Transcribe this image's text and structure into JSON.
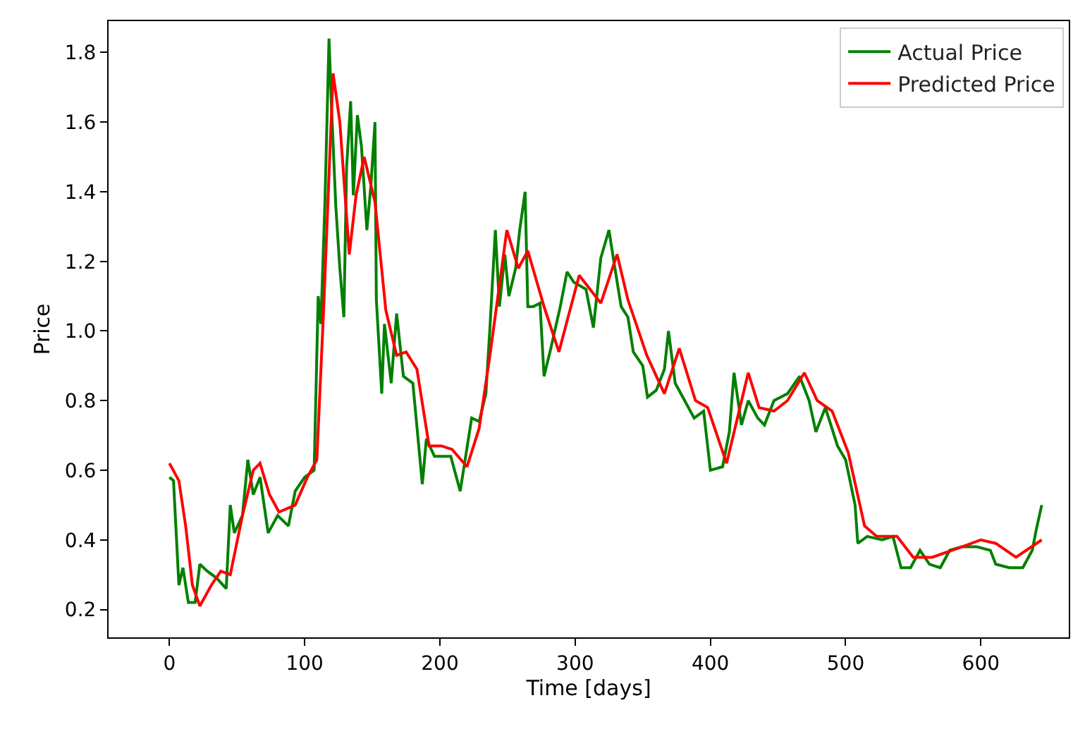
{
  "chart_data": {
    "type": "line",
    "xlabel": "Time [days]",
    "ylabel": "Price",
    "xlim": [
      -45,
      665
    ],
    "ylim": [
      0.12,
      1.89
    ],
    "xticks": [
      0,
      100,
      200,
      300,
      400,
      500,
      600
    ],
    "yticks": [
      0.2,
      0.4,
      0.6,
      0.8,
      {
        "value": 1.0,
        "label": "1.0"
      },
      1.2,
      1.4,
      1.6,
      1.8
    ],
    "legend": "top right",
    "marker": "none",
    "line_style": "solid",
    "series": [
      {
        "name": "Actual Price",
        "color": "#008000",
        "x": [
          0,
          3,
          7,
          10,
          14,
          19,
          22.5,
          28,
          35,
          42,
          45,
          48,
          54,
          58,
          62,
          67,
          73,
          80,
          88,
          93,
          100,
          107,
          110,
          112,
          115,
          118,
          120,
          123,
          126,
          129,
          131,
          134,
          136,
          139,
          142,
          146,
          149,
          152,
          153,
          157,
          159,
          164,
          168,
          173,
          180,
          187,
          190,
          196,
          205,
          208,
          215,
          223.5,
          229,
          234,
          237,
          241,
          244,
          248,
          251,
          256,
          259,
          263,
          265,
          269,
          274,
          277,
          282,
          289,
          294,
          299,
          308,
          313.5,
          319,
          325,
          329,
          334,
          339,
          343,
          350,
          353.5,
          360,
          366,
          369,
          374,
          381,
          388,
          395,
          400,
          409,
          414,
          417.5,
          423,
          428,
          435,
          440,
          447,
          457,
          466,
          473,
          478,
          485,
          494,
          500,
          507,
          509,
          516,
          527,
          535,
          541,
          548,
          555,
          562,
          570,
          577,
          586,
          597,
          607,
          611,
          621,
          631,
          638,
          641,
          645
        ],
        "values": [
          0.58,
          0.57,
          0.27,
          0.32,
          0.22,
          0.22,
          0.33,
          0.31,
          0.29,
          0.26,
          0.5,
          0.42,
          0.47,
          0.63,
          0.53,
          0.58,
          0.42,
          0.47,
          0.44,
          0.54,
          0.58,
          0.6,
          1.1,
          1.02,
          1.37,
          1.84,
          1.63,
          1.36,
          1.18,
          1.04,
          1.47,
          1.66,
          1.39,
          1.62,
          1.53,
          1.29,
          1.42,
          1.6,
          1.09,
          0.82,
          1.02,
          0.85,
          1.05,
          0.87,
          0.85,
          0.56,
          0.69,
          0.64,
          0.64,
          0.64,
          0.54,
          0.75,
          0.74,
          0.82,
          1.01,
          1.29,
          1.07,
          1.22,
          1.1,
          1.18,
          1.29,
          1.4,
          1.07,
          1.07,
          1.08,
          0.87,
          0.95,
          1.07,
          1.17,
          1.14,
          1.12,
          1.01,
          1.21,
          1.29,
          1.19,
          1.07,
          1.04,
          0.94,
          0.9,
          0.81,
          0.83,
          0.89,
          1.0,
          0.85,
          0.8,
          0.75,
          0.77,
          0.6,
          0.61,
          0.71,
          0.88,
          0.73,
          0.8,
          0.75,
          0.73,
          0.8,
          0.82,
          0.87,
          0.8,
          0.71,
          0.78,
          0.67,
          0.63,
          0.5,
          0.39,
          0.41,
          0.4,
          0.41,
          0.32,
          0.32,
          0.37,
          0.33,
          0.32,
          0.37,
          0.38,
          0.38,
          0.37,
          0.33,
          0.32,
          0.32,
          0.37,
          0.43,
          0.5
        ]
      },
      {
        "name": "Predicted Price",
        "color": "#ff0000",
        "x": [
          0,
          7,
          12,
          17,
          22.5,
          31,
          38,
          45,
          54,
          62,
          67,
          74,
          81,
          93,
          102,
          109,
          114,
          121,
          126,
          133,
          138,
          144,
          152,
          160,
          168,
          175,
          183,
          192,
          201,
          209,
          220,
          229,
          237,
          249.5,
          258,
          265,
          277,
          288,
          303,
          319,
          331,
          339,
          353,
          366,
          377,
          389,
          398,
          412,
          428,
          436,
          447,
          457,
          469.5,
          479,
          490,
          502,
          514,
          523,
          538,
          550,
          564,
          586,
          600,
          611,
          626,
          645
        ],
        "values": [
          0.62,
          0.57,
          0.44,
          0.27,
          0.21,
          0.27,
          0.31,
          0.3,
          0.47,
          0.6,
          0.62,
          0.53,
          0.48,
          0.5,
          0.58,
          0.63,
          1.06,
          1.74,
          1.6,
          1.22,
          1.39,
          1.5,
          1.37,
          1.06,
          0.93,
          0.94,
          0.89,
          0.67,
          0.67,
          0.66,
          0.61,
          0.72,
          0.93,
          1.29,
          1.18,
          1.23,
          1.07,
          0.94,
          1.16,
          1.08,
          1.22,
          1.09,
          0.93,
          0.82,
          0.95,
          0.8,
          0.78,
          0.62,
          0.88,
          0.78,
          0.77,
          0.8,
          0.88,
          0.8,
          0.77,
          0.65,
          0.44,
          0.41,
          0.41,
          0.35,
          0.35,
          0.38,
          0.4,
          0.39,
          0.35,
          0.4
        ]
      }
    ]
  }
}
